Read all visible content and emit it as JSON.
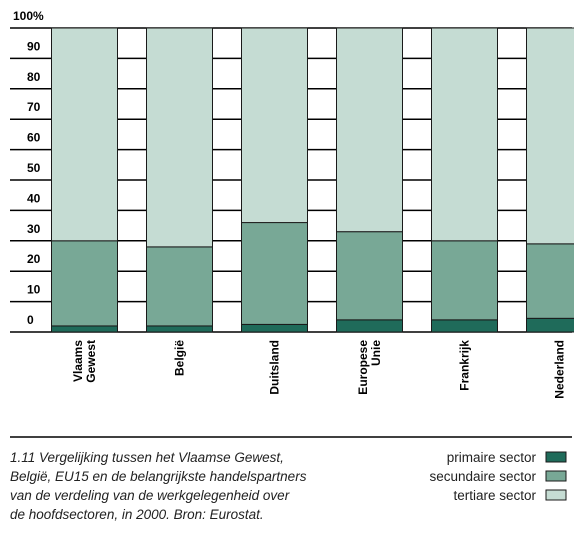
{
  "chart_data": {
    "type": "stacked_bar",
    "categories": [
      "Vlaams Gewest",
      "België",
      "Duitsland",
      "Europese Unie",
      "Frankrijk",
      "Nederland"
    ],
    "series": [
      {
        "name": "primaire sector",
        "color": "#1f6b5a",
        "values": [
          2,
          2,
          2.5,
          4,
          4,
          4.5
        ]
      },
      {
        "name": "secundaire sector",
        "color": "#78a896",
        "values": [
          28,
          26,
          33.5,
          29,
          26,
          24.5
        ]
      },
      {
        "name": "tertiare sector",
        "color": "#c5dcd3",
        "values": [
          70,
          72,
          64,
          67,
          70,
          71
        ]
      }
    ],
    "ylim": [
      0,
      100
    ],
    "yticks": [
      0,
      10,
      20,
      30,
      40,
      50,
      60,
      70,
      80,
      90,
      {
        "value": 100,
        "label": "100%"
      }
    ],
    "grid": true,
    "caption": [
      "1.11 Vergelijking tussen het Vlaamse Gewest,",
      "België, EU15 en de belangrijkste handelspartners",
      "van de verdeling van de werkgelegenheid over",
      "de hoofdsectoren, in 2000. Bron: Eurostat."
    ]
  }
}
